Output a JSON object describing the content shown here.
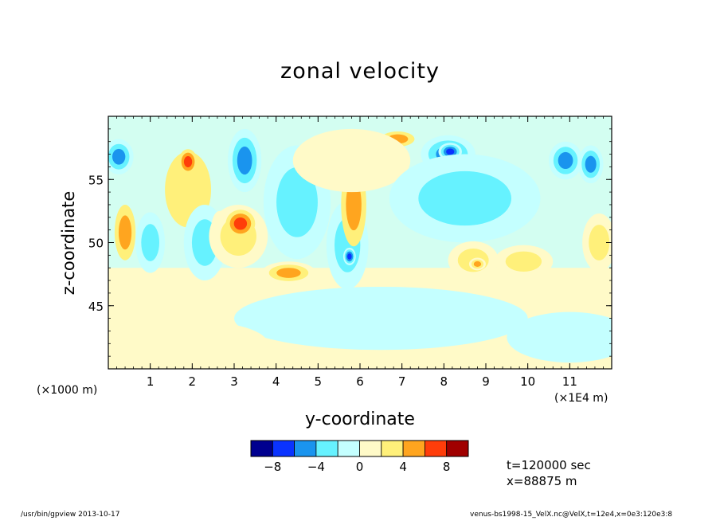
{
  "chart_data": {
    "type": "heatmap",
    "title": "zonal velocity",
    "xlabel": "y-coordinate",
    "ylabel": "z-coordinate",
    "x_unit_note": "(×1E4 m)",
    "y_unit_note": "(×1000 m)",
    "xlim": [
      0,
      12
    ],
    "ylim": [
      40,
      60
    ],
    "x_ticks": [
      "1",
      "2",
      "3",
      "4",
      "5",
      "6",
      "7",
      "8",
      "9",
      "10",
      "11"
    ],
    "y_ticks": [
      "45",
      "50",
      "55"
    ],
    "colorbar": {
      "tick_labels": [
        "−8",
        "−4",
        "0",
        "4",
        "8"
      ],
      "colors": [
        "#00008f",
        "#0a33ff",
        "#1a94ee",
        "#66f2ff",
        "#c4ffff",
        "#fffac8",
        "#fff07a",
        "#ffa51f",
        "#ff3d0a",
        "#a00000"
      ]
    },
    "features": [
      {
        "y": 0.25,
        "z": 56.8,
        "ry": 0.35,
        "rz": 1.4,
        "value": -6
      },
      {
        "y": 0.4,
        "z": 50.8,
        "ry": 0.25,
        "rz": 2.2,
        "value": 4
      },
      {
        "y": 1.0,
        "z": 50.0,
        "ry": 0.35,
        "rz": 2.4,
        "value": -3
      },
      {
        "y": 1.9,
        "z": 54.2,
        "ry": 0.55,
        "rz": 3.0,
        "value": 2
      },
      {
        "y": 1.9,
        "z": 56.4,
        "ry": 0.22,
        "rz": 1.0,
        "value": 6
      },
      {
        "y": 2.3,
        "z": 50.0,
        "ry": 0.5,
        "rz": 3.0,
        "value": -3
      },
      {
        "y": 2.65,
        "z": 51.0,
        "ry": 0.2,
        "rz": 1.5,
        "value": 5
      },
      {
        "y": 3.25,
        "z": 56.5,
        "ry": 0.4,
        "rz": 2.5,
        "value": -5
      },
      {
        "y": 3.1,
        "z": 50.5,
        "ry": 0.7,
        "rz": 2.5,
        "value": 3
      },
      {
        "y": 3.15,
        "z": 51.5,
        "ry": 0.35,
        "rz": 1.1,
        "value": 6
      },
      {
        "y": 4.3,
        "z": 47.6,
        "ry": 0.65,
        "rz": 0.9,
        "value": 5
      },
      {
        "y": 4.5,
        "z": 53.2,
        "ry": 0.8,
        "rz": 4.5,
        "value": -3
      },
      {
        "y": 5.7,
        "z": 49.8,
        "ry": 0.5,
        "rz": 3.5,
        "value": -4
      },
      {
        "y": 5.75,
        "z": 48.9,
        "ry": 0.15,
        "rz": 0.7,
        "value": -8
      },
      {
        "y": 5.85,
        "z": 53.0,
        "ry": 0.3,
        "rz": 3.3,
        "value": 4
      },
      {
        "y": 6.9,
        "z": 58.2,
        "ry": 0.4,
        "rz": 0.6,
        "value": 4
      },
      {
        "y": 5.8,
        "z": 56.5,
        "ry": 1.4,
        "rz": 2.5,
        "value": 1
      },
      {
        "y": 8.1,
        "z": 57.0,
        "ry": 0.65,
        "rz": 1.5,
        "value": -6
      },
      {
        "y": 8.15,
        "z": 57.2,
        "ry": 0.28,
        "rz": 0.7,
        "value": -8
      },
      {
        "y": 8.5,
        "z": 53.5,
        "ry": 1.8,
        "rz": 3.5,
        "value": -3
      },
      {
        "y": 8.7,
        "z": 48.6,
        "ry": 0.6,
        "rz": 1.5,
        "value": 3
      },
      {
        "y": 8.8,
        "z": 48.3,
        "ry": 0.2,
        "rz": 0.5,
        "value": 5
      },
      {
        "y": 9.9,
        "z": 48.5,
        "ry": 0.7,
        "rz": 1.3,
        "value": 3
      },
      {
        "y": 10.9,
        "z": 56.5,
        "ry": 0.4,
        "rz": 1.5,
        "value": -5
      },
      {
        "y": 11.5,
        "z": 56.2,
        "ry": 0.3,
        "rz": 1.5,
        "value": -6
      },
      {
        "y": 11.7,
        "z": 50.0,
        "ry": 0.4,
        "rz": 2.3,
        "value": 3
      },
      {
        "y": 6.5,
        "z": 44.0,
        "ry": 3.5,
        "rz": 2.5,
        "value": -1
      },
      {
        "y": 2.0,
        "z": 42.0,
        "ry": 1.8,
        "rz": 1.8,
        "value": 1
      },
      {
        "y": 11.0,
        "z": 42.5,
        "ry": 1.5,
        "rz": 2.0,
        "value": -1
      },
      {
        "y": 0.5,
        "z": 45.0,
        "ry": 0.8,
        "rz": 2.5,
        "value": 1
      }
    ],
    "annotations": [
      "t=120000 sec",
      "x=88875 m"
    ]
  },
  "footer": {
    "left": "/usr/bin/gpview   2013-10-17",
    "right": "venus-bs1998-15_VelX.nc@VelX,t=12e4,x=0e3:120e3:8"
  }
}
